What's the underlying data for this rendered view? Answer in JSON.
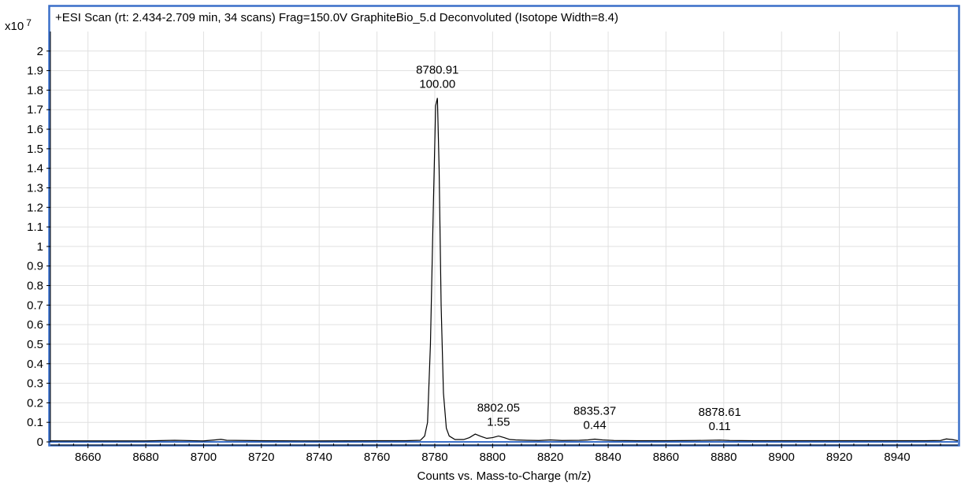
{
  "chart_data": {
    "type": "line",
    "title": "+ESI Scan (rt: 2.434-2.709 min, 34 scans) Frag=150.0V GraphiteBio_5.d  Deconvoluted (Isotope Width=8.4)",
    "xlabel": "Counts vs. Mass-to-Charge (m/z)",
    "y_multiplier": "x10",
    "y_multiplier_exp": "7",
    "xlim": [
      8647,
      8961
    ],
    "ylim": [
      0,
      2.1
    ],
    "grid": true,
    "x_ticks": [
      8660,
      8680,
      8700,
      8720,
      8740,
      8760,
      8780,
      8800,
      8820,
      8840,
      8860,
      8880,
      8900,
      8920,
      8940
    ],
    "x_tick_labels": [
      "8660",
      "8680",
      "8700",
      "8720",
      "8740",
      "8760",
      "8780",
      "8800",
      "8820",
      "8840",
      "8860",
      "8880",
      "8900",
      "8920",
      "8940"
    ],
    "y_ticks": [
      0,
      0.1,
      0.2,
      0.3,
      0.4,
      0.5,
      0.6,
      0.7,
      0.8,
      0.9,
      1,
      1.1,
      1.2,
      1.3,
      1.4,
      1.5,
      1.6,
      1.7,
      1.8,
      1.9,
      2
    ],
    "y_tick_labels": [
      "0",
      "0.1",
      "0.2",
      "0.3",
      "0.4",
      "0.5",
      "0.6",
      "0.7",
      "0.8",
      "0.9",
      "1",
      "1.1",
      "1.2",
      "1.3",
      "1.4",
      "1.5",
      "1.6",
      "1.7",
      "1.8",
      "1.9",
      "2"
    ],
    "series": [
      {
        "x": [
          8647,
          8660,
          8680,
          8690,
          8700,
          8704,
          8706,
          8708,
          8720,
          8740,
          8760,
          8770,
          8775,
          8776.5,
          8777.5,
          8778.5,
          8779.5,
          8780.3,
          8780.91,
          8781.5,
          8782.2,
          8783,
          8784,
          8785,
          8787,
          8790,
          8792,
          8794,
          8796,
          8798,
          8800,
          8802.05,
          8804,
          8806,
          8808,
          8812,
          8816,
          8820,
          8824,
          8830,
          8833,
          8835.37,
          8838,
          8842,
          8850,
          8860,
          8870,
          8875,
          8878.61,
          8882,
          8890,
          8900,
          8920,
          8940,
          8950,
          8955,
          8957,
          8959,
          8961
        ],
        "y": [
          0.005,
          0.005,
          0.005,
          0.008,
          0.005,
          0.01,
          0.013,
          0.008,
          0.006,
          0.005,
          0.006,
          0.006,
          0.008,
          0.03,
          0.1,
          0.5,
          1.2,
          1.72,
          1.76,
          1.4,
          0.7,
          0.25,
          0.07,
          0.03,
          0.012,
          0.012,
          0.022,
          0.04,
          0.028,
          0.018,
          0.022,
          0.03,
          0.022,
          0.012,
          0.01,
          0.008,
          0.007,
          0.01,
          0.007,
          0.008,
          0.01,
          0.014,
          0.01,
          0.007,
          0.006,
          0.006,
          0.007,
          0.008,
          0.009,
          0.007,
          0.006,
          0.006,
          0.006,
          0.006,
          0.006,
          0.007,
          0.015,
          0.012,
          0.006
        ],
        "color": "#000000"
      }
    ],
    "peak_labels": [
      {
        "mass": 8780.91,
        "mass_label": "8780.91",
        "relative_label": "100.00",
        "peak_y": 1.76
      },
      {
        "mass": 8802.05,
        "mass_label": "8802.05",
        "relative_label": "1.55",
        "peak_y": 0.03
      },
      {
        "mass": 8835.37,
        "mass_label": "8835.37",
        "relative_label": "0.44",
        "peak_y": 0.014
      },
      {
        "mass": 8878.61,
        "mass_label": "8878.61",
        "relative_label": "0.11",
        "peak_y": 0.009
      }
    ],
    "colors": {
      "frame": "#3a6fc8",
      "baseline": "#3a6fc8",
      "grid": "#e0e0e0",
      "trace": "#000000"
    }
  }
}
